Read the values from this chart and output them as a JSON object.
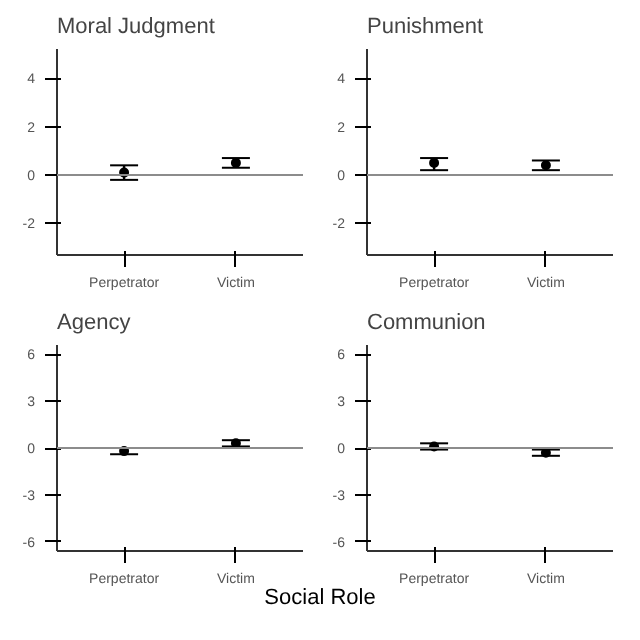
{
  "chart_data": [
    {
      "type": "scatter",
      "title": "Moral Judgment",
      "categories": [
        "Perpetrator",
        "Victim"
      ],
      "values": [
        0.1,
        0.5
      ],
      "errors": [
        [
          -0.2,
          0.4
        ],
        [
          0.3,
          0.7
        ]
      ],
      "color": "#000000",
      "marker": "circle",
      "ylim": [
        -3.3,
        5.2
      ],
      "yticks": [
        -2,
        0,
        2,
        4
      ],
      "ref_lines": [
        {
          "axis": "y",
          "value": 0,
          "color": "#8c8c8c"
        }
      ],
      "grid": false
    },
    {
      "type": "scatter",
      "title": "Punishment",
      "categories": [
        "Perpetrator",
        "Victim"
      ],
      "values": [
        0.5,
        0.4
      ],
      "errors": [
        [
          0.2,
          0.7
        ],
        [
          0.2,
          0.6
        ]
      ],
      "color": "#000000",
      "marker": "circle",
      "ylim": [
        -3.3,
        5.2
      ],
      "yticks": [
        -2,
        0,
        2,
        4
      ],
      "ref_lines": [
        {
          "axis": "y",
          "value": 0,
          "color": "#8c8c8c"
        }
      ],
      "grid": false
    },
    {
      "type": "scatter",
      "title": "Agency",
      "xlabel": "Social Role",
      "categories": [
        "Perpetrator",
        "Victim"
      ],
      "values": [
        -0.2,
        0.3
      ],
      "errors": [
        [
          -0.4,
          0.0
        ],
        [
          0.1,
          0.5
        ]
      ],
      "color": "#000000",
      "marker": "circle",
      "ylim": [
        -6.6,
        6.6
      ],
      "yticks": [
        -6,
        -3,
        0,
        3,
        6
      ],
      "ref_lines": [
        {
          "axis": "y",
          "value": 0,
          "color": "#8c8c8c"
        }
      ],
      "grid": false
    },
    {
      "type": "scatter",
      "title": "Communion",
      "categories": [
        "Perpetrator",
        "Victim"
      ],
      "values": [
        0.1,
        -0.3
      ],
      "errors": [
        [
          -0.1,
          0.3
        ],
        [
          -0.5,
          -0.1
        ]
      ],
      "color": "#000000",
      "marker": "circle",
      "ylim": [
        -6.6,
        6.6
      ],
      "yticks": [
        -6,
        -3,
        0,
        3,
        6
      ],
      "ref_lines": [
        {
          "axis": "y",
          "value": 0,
          "color": "#8c8c8c"
        }
      ],
      "grid": false
    }
  ]
}
